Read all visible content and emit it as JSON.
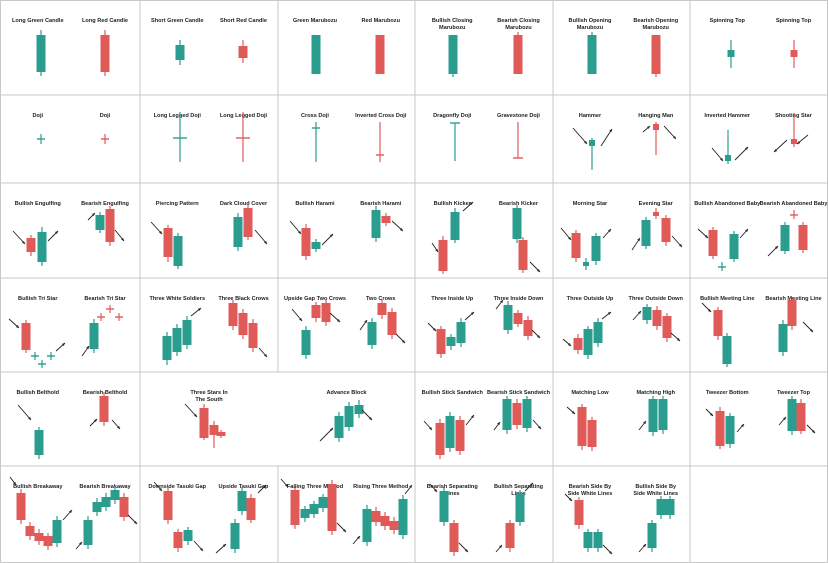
{
  "colors": {
    "bull": "#2a9d8f",
    "bear": "#e05a58",
    "arrow": "#222222",
    "grid": "#c8c8c8",
    "text": "#222222"
  },
  "cells": [
    {
      "labels": [
        "Long Green Candle",
        "Long Red Candle"
      ]
    },
    {
      "labels": [
        "Short Green Candle",
        "Short Red Candle"
      ]
    },
    {
      "labels": [
        "Green Marubozu",
        "Red Marubozu"
      ]
    },
    {
      "labels": [
        "Bullish Closing Marubozu",
        "Bearish Closing Marubozu"
      ]
    },
    {
      "labels": [
        "Bullish Opening Marubozu",
        "Bearish Opening Marubozu"
      ]
    },
    {
      "labels": [
        "Spinning Top",
        "Spinning Top"
      ]
    },
    {
      "labels": [
        "Doji",
        "Doji"
      ]
    },
    {
      "labels": [
        "Long Legged Doji",
        "Long Legged Doji"
      ]
    },
    {
      "labels": [
        "Cross Doji",
        "Inverted Cross Doji"
      ]
    },
    {
      "labels": [
        "Dragonfly Doji",
        "Gravestone Doji"
      ]
    },
    {
      "labels": [
        "Hammer",
        "Hanging Man"
      ]
    },
    {
      "labels": [
        "Inverted Hammer",
        "Shooting Star"
      ]
    },
    {
      "labels": [
        "Bullish Engulfing",
        "Bearish Engulfing"
      ]
    },
    {
      "labels": [
        "Piercing Pattern",
        "Dark Cloud Cover"
      ]
    },
    {
      "labels": [
        "Bullish Harami",
        "Bearish Harami"
      ]
    },
    {
      "labels": [
        "Bullish Kicker",
        "Bearish Kicker"
      ]
    },
    {
      "labels": [
        "Morning Star",
        "Evening Star"
      ]
    },
    {
      "labels": [
        "Bullish Abandoned Baby",
        "Bearish Abandoned Baby"
      ]
    },
    {
      "labels": [
        "Bullish Tri Star",
        "Bearish Tri Star"
      ]
    },
    {
      "labels": [
        "Three White Soldiers",
        "Three Black Crows"
      ]
    },
    {
      "labels": [
        "Upside Gap Two Crows",
        "Two Crows"
      ]
    },
    {
      "labels": [
        "Three Inside Up",
        "Three Inside Down"
      ]
    },
    {
      "labels": [
        "Three Outside Up",
        "Three Outside Down"
      ]
    },
    {
      "labels": [
        "Bullish Meeting Line",
        "Bearish Meeting Line"
      ]
    },
    {
      "labels": [
        "Bullish Belthold",
        "Bearish Belthold"
      ]
    },
    {
      "labels": [
        "Three Stars In The South"
      ]
    },
    {
      "labels": [
        "Advance Block"
      ]
    },
    {
      "labels": [
        "Bullish Stick Sandwich",
        "Bearish Stick Sandwich"
      ]
    },
    {
      "labels": [
        "Matching Low",
        "Matching High"
      ]
    },
    {
      "labels": [
        "Tweezer Bottom",
        "Tweezer Top"
      ]
    },
    {
      "labels": [
        "Bullish Breakaway",
        "Bearish Breakaway"
      ]
    },
    {
      "labels": [
        "Downside Tasuki Gap",
        "Upside Tasuki Gap"
      ]
    },
    {
      "labels": [
        "Falling Three Method",
        "Rising Three Method"
      ]
    },
    {
      "labels": [
        "Bearish Separating Lines",
        "Bullish Separating Lines"
      ]
    },
    {
      "labels": [
        "Bearish Side By Side White Lines",
        "Bullish Side By Side White Lines"
      ]
    }
  ]
}
